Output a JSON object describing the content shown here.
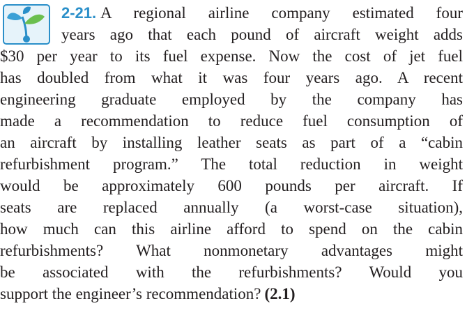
{
  "problem": {
    "number": "2-21.",
    "lines": [
      "A regional airline company estimated four",
      "years ago that each pound of aircraft weight adds",
      "$30 per year to its fuel expense. Now the cost of jet fuel",
      "has doubled from what it was four years ago. A recent",
      "engineering graduate employed by the company has",
      "made a recommendation to reduce fuel consumption of",
      "an aircraft by installing leather seats as part of a “cabin",
      "refurbishment program.” The total reduction in weight",
      "would be approximately 600 pounds per aircraft. If",
      "seats are replaced annually (a worst-case situation),",
      "how much can this airline afford to spend on the cabin",
      "refurbishments? What nonmonetary advantages might",
      "be associated with the refurbishments? Would you",
      "support the engineer’s recommendation?"
    ],
    "reference": "(2.1)"
  }
}
